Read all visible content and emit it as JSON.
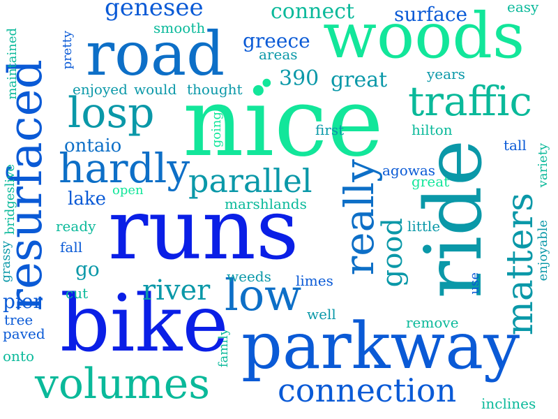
{
  "colors": {
    "background": "#ffffff",
    "blue": "#0a1fe6",
    "royal": "#0a5ad6",
    "steel": "#0d6fc7",
    "teal": "#0a98a8",
    "sea": "#0ab99a",
    "mint": "#12e69a"
  },
  "words": {
    "nice": "nice",
    "runs": "runs",
    "ride": "ride",
    "bike": "bike",
    "parkway": "parkway",
    "road": "road",
    "woods": "woods",
    "resurfaced": "resurfaced",
    "volumes": "volumes",
    "traffic": "traffic",
    "losp": "losp",
    "hardly": "hardly",
    "really": "really",
    "low": "low",
    "matters": "matters",
    "connection": "connection",
    "parallel": "parallel",
    "good": "good",
    "river": "river",
    "genesee": "genesee",
    "connect": "connect",
    "surface": "surface",
    "greece": "greece",
    "n390": "390",
    "great": "great",
    "ontaio": "ontaio",
    "lake": "lake",
    "pier": "pier",
    "tree": "tree",
    "paved": "paved",
    "onto": "onto",
    "go": "go",
    "weeds": "weeds",
    "limes": "limes",
    "well": "well",
    "remove": "remove",
    "inclines": "inclines",
    "agowas": "agowas",
    "great2": "great",
    "little": "little",
    "enjoyable": "enjoyable",
    "variety": "variety",
    "tall": "tall",
    "hilton": "hilton",
    "first": "first",
    "years": "years",
    "easy": "easy",
    "smooth": "smooth",
    "areas": "areas",
    "pretty": "pretty",
    "maintained": "maintained",
    "enjoyed": "enjoyed",
    "would": "would",
    "thought": "thought",
    "going": "going",
    "open": "open",
    "marshlands": "marshlands",
    "ready": "ready",
    "fall": "fall",
    "cut": "cut",
    "bridgeslive": "bridgeslive",
    "grassy": "grassy",
    "family": "family",
    "use": "use",
    "dot": "."
  }
}
